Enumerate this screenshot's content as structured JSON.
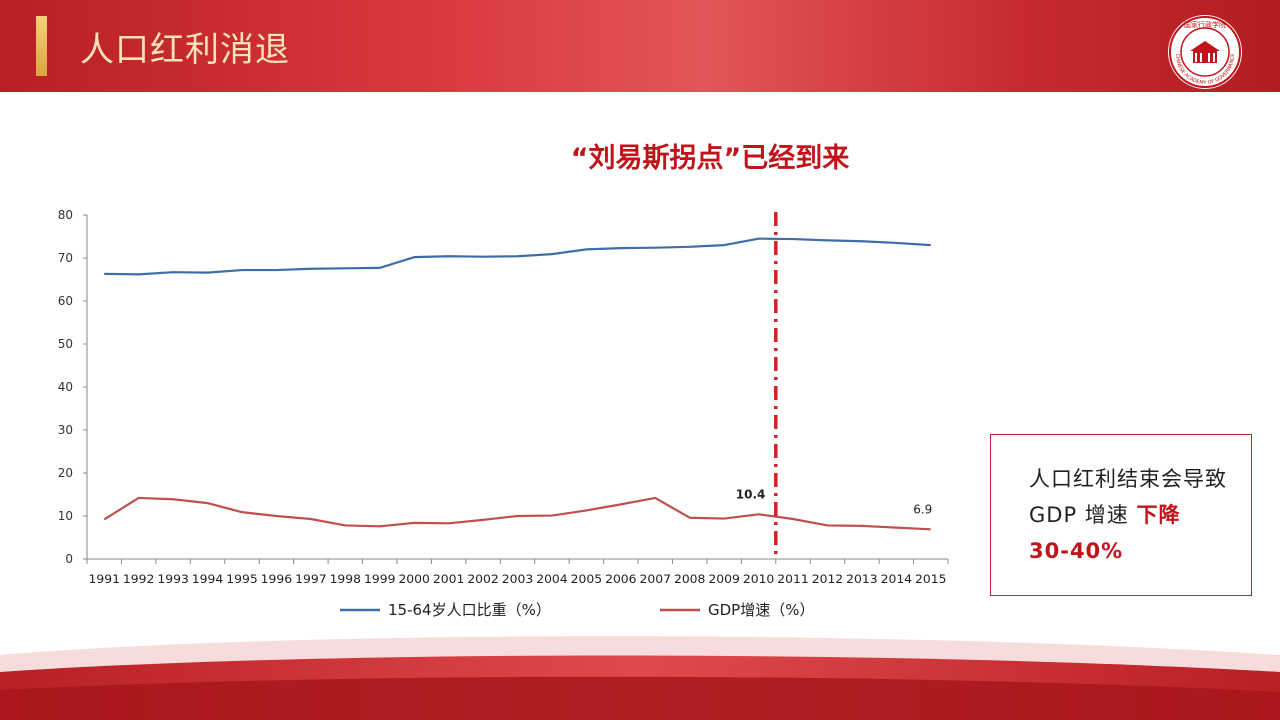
{
  "header": {
    "title": "人口红利消退",
    "logo_text": "国家行政学院",
    "logo_subtext": "CHINESE ACADEMY OF GOVERNANCE"
  },
  "chart_title": "“刘易斯拐点”已经到来",
  "note": {
    "text_prefix": "人口红利结束会导致 GDP 增速 ",
    "text_highlight_1": "下降",
    "text_highlight_2": "30-40%"
  },
  "colors": {
    "header_red": "#c62a2e",
    "accent_gold": "#e0b050",
    "series_blue": "#3f6ea6",
    "series_red": "#c0504d",
    "marker_red": "#d42026"
  },
  "chart_data": {
    "type": "line",
    "x": [
      "1991",
      "1992",
      "1993",
      "1994",
      "1995",
      "1996",
      "1997",
      "1998",
      "1999",
      "2000",
      "2001",
      "2002",
      "2003",
      "2004",
      "2005",
      "2006",
      "2007",
      "2008",
      "2009",
      "2010",
      "2011",
      "2012",
      "2013",
      "2014",
      "2015"
    ],
    "series": [
      {
        "name": "15-64岁人口比重（%）",
        "values": [
          66.3,
          66.2,
          66.7,
          66.6,
          67.2,
          67.2,
          67.5,
          67.6,
          67.7,
          70.2,
          70.4,
          70.3,
          70.4,
          70.9,
          72.0,
          72.3,
          72.4,
          72.6,
          73.0,
          74.5,
          74.4,
          74.1,
          73.9,
          73.5,
          73.0
        ]
      },
      {
        "name": "GDP增速（%）",
        "values": [
          9.2,
          14.2,
          13.9,
          13.0,
          10.9,
          10.0,
          9.3,
          7.8,
          7.6,
          8.4,
          8.3,
          9.1,
          10.0,
          10.1,
          11.3,
          12.7,
          14.2,
          9.6,
          9.4,
          10.4,
          9.3,
          7.8,
          7.7,
          7.3,
          6.9
        ]
      }
    ],
    "annotations": [
      {
        "series": 1,
        "x": "2010",
        "label": "10.4"
      },
      {
        "series": 1,
        "x": "2015",
        "label": "6.9"
      }
    ],
    "vertical_marker": {
      "between": [
        "2010",
        "2011"
      ],
      "style": "dash-dot"
    },
    "y_ticks": [
      "0",
      "10",
      "20",
      "30",
      "40",
      "50",
      "60",
      "70",
      "80"
    ],
    "ylim": [
      0,
      80
    ],
    "legend": "bottom"
  }
}
